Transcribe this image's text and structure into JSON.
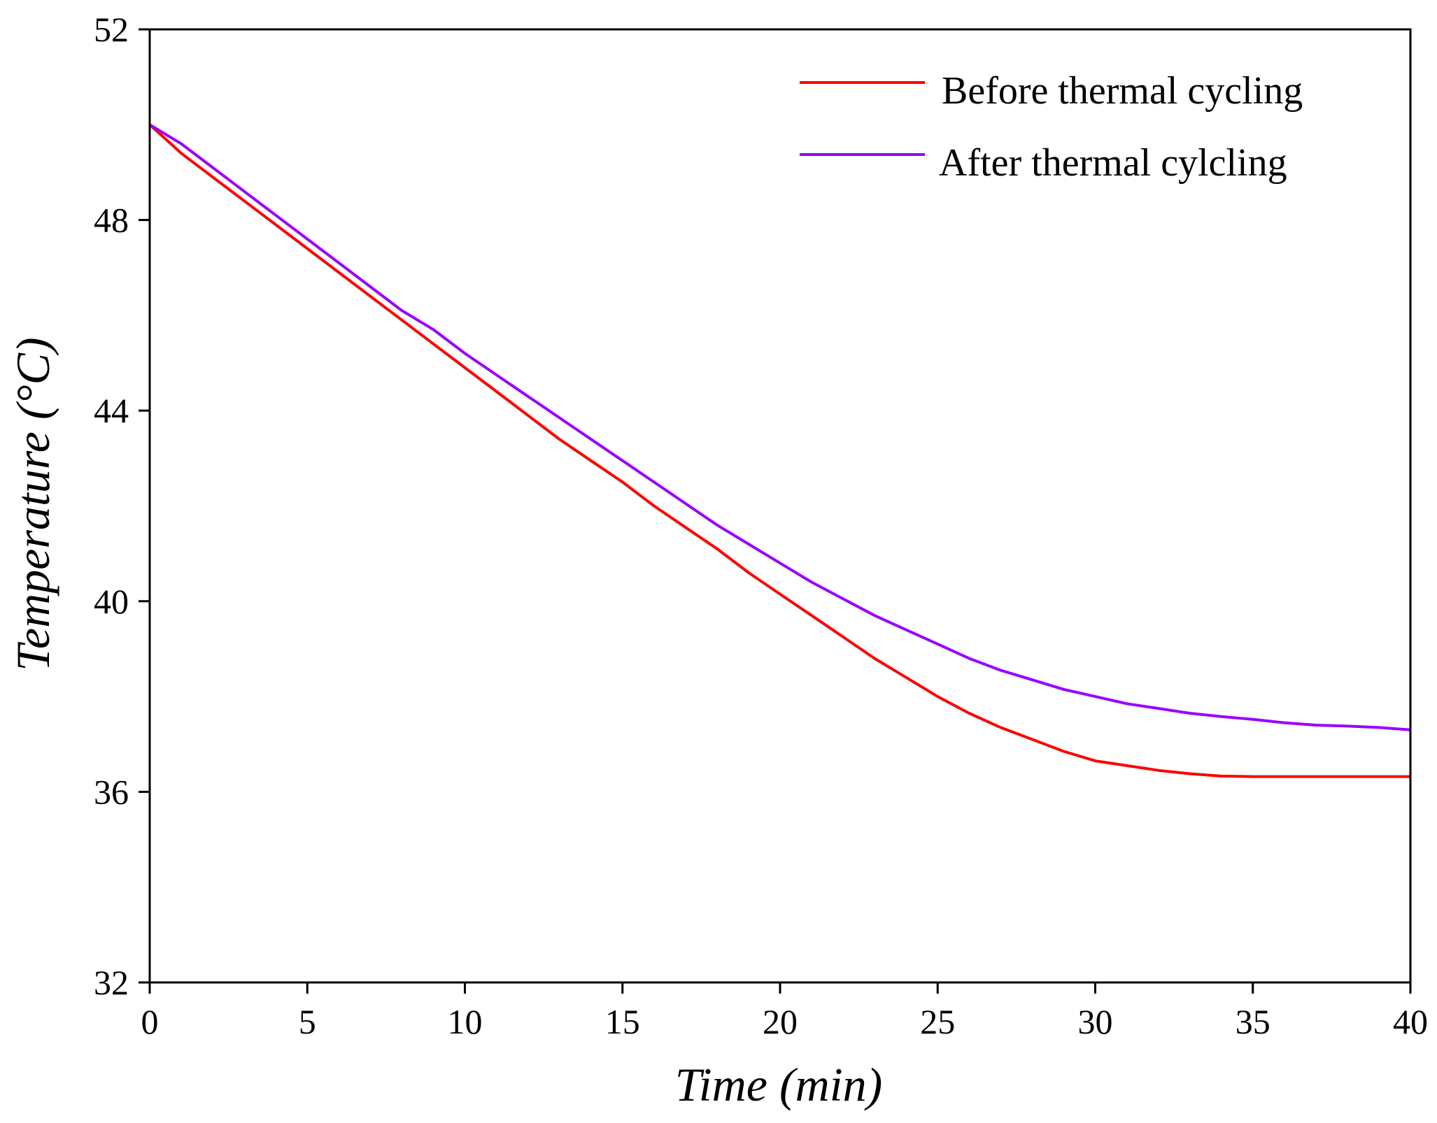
{
  "chart_data": {
    "type": "line",
    "xlabel": "Time (min)",
    "ylabel": "Temperature (°C)",
    "xlim": [
      0,
      40
    ],
    "ylim": [
      32,
      52
    ],
    "x_ticks": [
      0,
      5,
      10,
      15,
      20,
      25,
      30,
      35,
      40
    ],
    "y_ticks": [
      32,
      36,
      40,
      44,
      48,
      52
    ],
    "x_tick_labels": [
      "0",
      "5",
      "10",
      "15",
      "20",
      "25",
      "30",
      "35",
      "40"
    ],
    "y_tick_labels": [
      "32",
      "36",
      "40",
      "44",
      "48",
      "52"
    ],
    "grid": false,
    "legend_position": "top-right",
    "series": [
      {
        "name": "Before thermal cycling",
        "color": "#ff0000",
        "x": [
          0,
          1,
          2,
          3,
          4,
          5,
          6,
          7,
          8,
          9,
          10,
          11,
          12,
          13,
          14,
          15,
          16,
          17,
          18,
          19,
          20,
          21,
          22,
          23,
          24,
          25,
          26,
          27,
          28,
          29,
          30,
          31,
          32,
          33,
          34,
          35,
          36,
          37,
          38,
          39,
          40
        ],
        "values": [
          50.0,
          49.4,
          48.9,
          48.4,
          47.9,
          47.4,
          46.9,
          46.4,
          45.9,
          45.4,
          44.9,
          44.4,
          43.9,
          43.4,
          42.95,
          42.5,
          42.0,
          41.55,
          41.1,
          40.6,
          40.15,
          39.7,
          39.25,
          38.8,
          38.4,
          38.0,
          37.65,
          37.35,
          37.1,
          36.85,
          36.65,
          36.55,
          36.45,
          36.38,
          36.33,
          36.32,
          36.32,
          36.32,
          36.32,
          36.32,
          36.32
        ]
      },
      {
        "name": "After thermal cylcling",
        "color": "#9900ff",
        "x": [
          0,
          1,
          2,
          3,
          4,
          5,
          6,
          7,
          8,
          9,
          10,
          11,
          12,
          13,
          14,
          15,
          16,
          17,
          18,
          19,
          20,
          21,
          22,
          23,
          24,
          25,
          26,
          27,
          28,
          29,
          30,
          31,
          32,
          33,
          34,
          35,
          36,
          37,
          38,
          39,
          40
        ],
        "values": [
          50.0,
          49.6,
          49.1,
          48.6,
          48.1,
          47.6,
          47.1,
          46.6,
          46.1,
          45.7,
          45.2,
          44.75,
          44.3,
          43.85,
          43.4,
          42.95,
          42.5,
          42.05,
          41.6,
          41.2,
          40.8,
          40.4,
          40.05,
          39.7,
          39.4,
          39.1,
          38.8,
          38.55,
          38.35,
          38.15,
          38.0,
          37.85,
          37.75,
          37.65,
          37.58,
          37.52,
          37.45,
          37.4,
          37.38,
          37.35,
          37.3
        ]
      }
    ]
  }
}
